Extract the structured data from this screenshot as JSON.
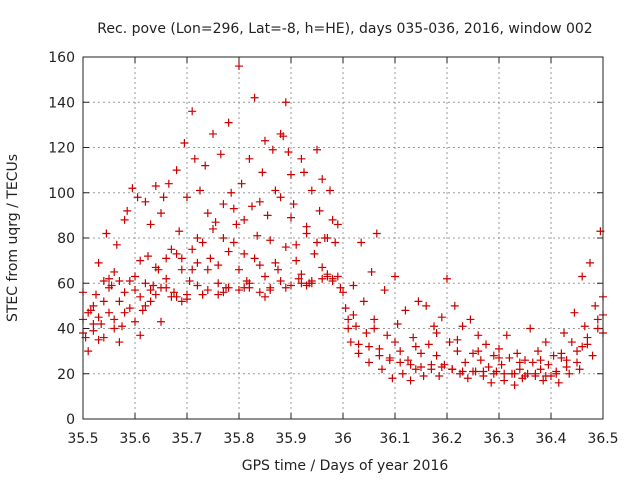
{
  "chart_data": {
    "type": "scatter",
    "title": "Rec. pove (Lon=296, Lat=-8, h=HE), days 035-036, 2016, window 002",
    "xlabel": "GPS time / Days of year 2016",
    "ylabel": "STEC from uqrg / TECUs",
    "xlim": [
      35.5,
      36.5
    ],
    "ylim": [
      0,
      160
    ],
    "xticks": [
      "35.5",
      "35.6",
      "35.7",
      "35.8",
      "35.9",
      "36",
      "36.1",
      "36.2",
      "36.3",
      "36.4",
      "36.5"
    ],
    "yticks": [
      "0",
      "20",
      "40",
      "60",
      "80",
      "100",
      "120",
      "140",
      "160"
    ],
    "grid": true,
    "marker": "+",
    "color": "#cc0000",
    "points": [
      [
        35.5,
        44
      ],
      [
        35.505,
        36
      ],
      [
        35.51,
        30
      ],
      [
        35.515,
        48
      ],
      [
        35.52,
        39
      ],
      [
        35.525,
        55
      ],
      [
        35.53,
        69
      ],
      [
        35.535,
        42
      ],
      [
        35.54,
        61
      ],
      [
        35.545,
        82
      ],
      [
        35.55,
        47
      ],
      [
        35.555,
        59
      ],
      [
        35.56,
        65
      ],
      [
        35.565,
        77
      ],
      [
        35.57,
        52
      ],
      [
        35.575,
        41
      ],
      [
        35.58,
        88
      ],
      [
        35.585,
        92
      ],
      [
        35.59,
        61
      ],
      [
        35.595,
        102
      ],
      [
        35.6,
        57
      ],
      [
        35.605,
        98
      ],
      [
        35.61,
        70
      ],
      [
        35.615,
        48
      ],
      [
        35.62,
        96
      ],
      [
        35.625,
        72
      ],
      [
        35.63,
        86
      ],
      [
        35.635,
        59
      ],
      [
        35.64,
        103
      ],
      [
        35.645,
        66
      ],
      [
        35.65,
        91
      ],
      [
        35.655,
        98
      ],
      [
        35.66,
        62
      ],
      [
        35.665,
        104
      ],
      [
        35.67,
        75
      ],
      [
        35.675,
        56
      ],
      [
        35.68,
        110
      ],
      [
        35.685,
        83
      ],
      [
        35.69,
        71
      ],
      [
        35.695,
        122
      ],
      [
        35.7,
        98
      ],
      [
        35.705,
        61
      ],
      [
        35.71,
        136
      ],
      [
        35.715,
        115
      ],
      [
        35.72,
        80
      ],
      [
        35.725,
        101
      ],
      [
        35.73,
        55
      ],
      [
        35.735,
        112
      ],
      [
        35.74,
        91
      ],
      [
        35.745,
        71
      ],
      [
        35.75,
        126
      ],
      [
        35.755,
        87
      ],
      [
        35.76,
        68
      ],
      [
        35.765,
        117
      ],
      [
        35.77,
        95
      ],
      [
        35.775,
        58
      ],
      [
        35.78,
        131
      ],
      [
        35.785,
        100
      ],
      [
        35.79,
        78
      ],
      [
        35.795,
        86
      ],
      [
        35.8,
        156
      ],
      [
        35.805,
        104
      ],
      [
        35.81,
        73
      ],
      [
        35.815,
        61
      ],
      [
        35.82,
        115
      ],
      [
        35.825,
        94
      ],
      [
        35.83,
        142
      ],
      [
        35.835,
        81
      ],
      [
        35.84,
        68
      ],
      [
        35.845,
        109
      ],
      [
        35.85,
        123
      ],
      [
        35.855,
        90
      ],
      [
        35.86,
        58
      ],
      [
        35.865,
        119
      ],
      [
        35.87,
        101
      ],
      [
        35.875,
        66
      ],
      [
        35.88,
        126
      ],
      [
        35.885,
        125
      ],
      [
        35.89,
        140
      ],
      [
        35.895,
        118
      ],
      [
        35.9,
        108
      ],
      [
        35.905,
        95
      ],
      [
        35.91,
        77
      ],
      [
        35.915,
        62
      ],
      [
        35.92,
        115
      ],
      [
        35.925,
        109
      ],
      [
        35.93,
        82
      ],
      [
        35.935,
        60
      ],
      [
        35.94,
        101
      ],
      [
        35.945,
        73
      ],
      [
        35.95,
        119
      ],
      [
        35.955,
        92
      ],
      [
        35.96,
        106
      ],
      [
        35.965,
        80
      ],
      [
        35.97,
        64
      ],
      [
        35.975,
        101
      ],
      [
        35.98,
        88
      ],
      [
        35.985,
        78
      ],
      [
        35.99,
        63
      ],
      [
        35.995,
        58
      ],
      [
        35.5,
        56
      ],
      [
        35.51,
        47
      ],
      [
        35.52,
        50
      ],
      [
        35.53,
        45
      ],
      [
        35.54,
        52
      ],
      [
        35.55,
        58
      ],
      [
        35.56,
        44
      ],
      [
        35.57,
        61
      ],
      [
        35.58,
        56
      ],
      [
        35.59,
        49
      ],
      [
        35.6,
        63
      ],
      [
        35.61,
        54
      ],
      [
        35.62,
        60
      ],
      [
        35.63,
        52
      ],
      [
        35.64,
        67
      ],
      [
        35.65,
        58
      ],
      [
        35.66,
        71
      ],
      [
        35.67,
        54
      ],
      [
        35.68,
        73
      ],
      [
        35.69,
        66
      ],
      [
        35.7,
        55
      ],
      [
        35.71,
        75
      ],
      [
        35.72,
        69
      ],
      [
        35.73,
        78
      ],
      [
        35.74,
        66
      ],
      [
        35.75,
        84
      ],
      [
        35.76,
        60
      ],
      [
        35.77,
        80
      ],
      [
        35.78,
        74
      ],
      [
        35.79,
        93
      ],
      [
        35.8,
        66
      ],
      [
        35.81,
        88
      ],
      [
        35.82,
        58
      ],
      [
        35.83,
        71
      ],
      [
        35.84,
        96
      ],
      [
        35.85,
        63
      ],
      [
        35.86,
        79
      ],
      [
        35.87,
        69
      ],
      [
        35.88,
        98
      ],
      [
        35.89,
        76
      ],
      [
        35.9,
        89
      ],
      [
        35.91,
        70
      ],
      [
        35.92,
        64
      ],
      [
        35.93,
        85
      ],
      [
        35.94,
        60
      ],
      [
        35.95,
        78
      ],
      [
        35.96,
        67
      ],
      [
        35.97,
        80
      ],
      [
        35.98,
        62
      ],
      [
        35.99,
        86
      ],
      [
        35.5,
        38
      ],
      [
        35.52,
        42
      ],
      [
        35.54,
        36
      ],
      [
        35.56,
        40
      ],
      [
        35.58,
        47
      ],
      [
        35.6,
        43
      ],
      [
        35.62,
        50
      ],
      [
        35.64,
        55
      ],
      [
        35.66,
        58
      ],
      [
        35.68,
        54
      ],
      [
        35.7,
        53
      ],
      [
        35.72,
        59
      ],
      [
        35.74,
        57
      ],
      [
        35.76,
        55
      ],
      [
        35.78,
        58
      ],
      [
        35.8,
        57
      ],
      [
        35.82,
        60
      ],
      [
        35.84,
        56
      ],
      [
        35.86,
        57
      ],
      [
        35.88,
        61
      ],
      [
        35.9,
        59
      ],
      [
        35.92,
        60
      ],
      [
        35.94,
        61
      ],
      [
        35.96,
        62
      ],
      [
        35.98,
        61
      ],
      [
        35.53,
        35
      ],
      [
        35.57,
        34
      ],
      [
        35.61,
        37
      ],
      [
        35.65,
        43
      ],
      [
        35.69,
        52
      ],
      [
        35.73,
        55
      ],
      [
        35.77,
        56
      ],
      [
        35.81,
        58
      ],
      [
        35.85,
        54
      ],
      [
        35.89,
        58
      ],
      [
        35.93,
        59
      ],
      [
        35.97,
        63
      ],
      [
        35.55,
        62
      ],
      [
        35.63,
        57
      ],
      [
        35.71,
        66
      ],
      [
        36,
        56
      ],
      [
        36.005,
        49
      ],
      [
        36.01,
        44
      ],
      [
        36.015,
        34
      ],
      [
        36.02,
        59
      ],
      [
        36.025,
        41
      ],
      [
        36.03,
        29
      ],
      [
        36.035,
        78
      ],
      [
        36.04,
        52
      ],
      [
        36.045,
        38
      ],
      [
        36.05,
        25
      ],
      [
        36.055,
        65
      ],
      [
        36.06,
        44
      ],
      [
        36.065,
        82
      ],
      [
        36.07,
        31
      ],
      [
        36.075,
        22
      ],
      [
        36.08,
        57
      ],
      [
        36.085,
        37
      ],
      [
        36.09,
        27
      ],
      [
        36.095,
        18
      ],
      [
        36.1,
        63
      ],
      [
        36.105,
        42
      ],
      [
        36.11,
        30
      ],
      [
        36.115,
        20
      ],
      [
        36.12,
        48
      ],
      [
        36.125,
        26
      ],
      [
        36.13,
        17
      ],
      [
        36.135,
        36
      ],
      [
        36.14,
        22
      ],
      [
        36.145,
        52
      ],
      [
        36.15,
        29
      ],
      [
        36.155,
        19
      ],
      [
        36.16,
        50
      ],
      [
        36.165,
        33
      ],
      [
        36.17,
        24
      ],
      [
        36.175,
        41
      ],
      [
        36.18,
        28
      ],
      [
        36.185,
        19
      ],
      [
        36.19,
        45
      ],
      [
        36.195,
        24
      ],
      [
        36.2,
        62
      ],
      [
        36.205,
        34
      ],
      [
        36.21,
        22
      ],
      [
        36.215,
        50
      ],
      [
        36.22,
        30
      ],
      [
        36.225,
        20
      ],
      [
        36.23,
        41
      ],
      [
        36.235,
        25
      ],
      [
        36.24,
        18
      ],
      [
        36.245,
        44
      ],
      [
        36.25,
        29
      ],
      [
        36.255,
        21
      ],
      [
        36.26,
        37
      ],
      [
        36.265,
        26
      ],
      [
        36.27,
        19
      ],
      [
        36.275,
        33
      ],
      [
        36.28,
        23
      ],
      [
        36.285,
        16
      ],
      [
        36.29,
        28
      ],
      [
        36.295,
        21
      ],
      [
        36.3,
        31
      ],
      [
        36.305,
        24
      ],
      [
        36.31,
        17
      ],
      [
        36.315,
        37
      ],
      [
        36.32,
        27
      ],
      [
        36.325,
        20
      ],
      [
        36.33,
        15
      ],
      [
        36.335,
        29
      ],
      [
        36.34,
        22
      ],
      [
        36.345,
        18
      ],
      [
        36.35,
        26
      ],
      [
        36.355,
        20
      ],
      [
        36.36,
        40
      ],
      [
        36.365,
        25
      ],
      [
        36.37,
        19
      ],
      [
        36.375,
        30
      ],
      [
        36.38,
        22
      ],
      [
        36.385,
        17
      ],
      [
        36.39,
        34
      ],
      [
        36.395,
        24
      ],
      [
        36.4,
        19
      ],
      [
        36.405,
        28
      ],
      [
        36.41,
        21
      ],
      [
        36.415,
        16
      ],
      [
        36.42,
        29
      ],
      [
        36.425,
        38
      ],
      [
        36.43,
        26
      ],
      [
        36.435,
        20
      ],
      [
        36.44,
        34
      ],
      [
        36.445,
        47
      ],
      [
        36.45,
        30
      ],
      [
        36.455,
        22
      ],
      [
        36.46,
        63
      ],
      [
        36.465,
        41
      ],
      [
        36.47,
        33
      ],
      [
        36.475,
        69
      ],
      [
        36.48,
        28
      ],
      [
        36.485,
        50
      ],
      [
        36.49,
        44
      ],
      [
        36.495,
        83
      ],
      [
        36.01,
        40
      ],
      [
        36.03,
        33
      ],
      [
        36.05,
        32
      ],
      [
        36.07,
        28
      ],
      [
        36.09,
        26
      ],
      [
        36.11,
        25
      ],
      [
        36.13,
        24
      ],
      [
        36.15,
        23
      ],
      [
        36.17,
        22
      ],
      [
        36.19,
        23
      ],
      [
        36.21,
        22
      ],
      [
        36.23,
        21
      ],
      [
        36.25,
        21
      ],
      [
        36.27,
        21
      ],
      [
        36.29,
        20
      ],
      [
        36.31,
        20
      ],
      [
        36.33,
        20
      ],
      [
        36.35,
        19
      ],
      [
        36.37,
        20
      ],
      [
        36.39,
        19
      ],
      [
        36.41,
        20
      ],
      [
        36.43,
        23
      ],
      [
        36.45,
        25
      ],
      [
        36.47,
        36
      ],
      [
        36.49,
        40
      ],
      [
        36.02,
        46
      ],
      [
        36.06,
        40
      ],
      [
        36.1,
        34
      ],
      [
        36.14,
        32
      ],
      [
        36.18,
        38
      ],
      [
        36.22,
        35
      ],
      [
        36.26,
        30
      ],
      [
        36.3,
        27
      ],
      [
        36.34,
        25
      ],
      [
        36.38,
        26
      ],
      [
        36.42,
        27
      ],
      [
        36.46,
        32
      ],
      [
        36.5,
        38
      ],
      [
        36.5,
        54
      ],
      [
        36.5,
        46
      ]
    ]
  }
}
